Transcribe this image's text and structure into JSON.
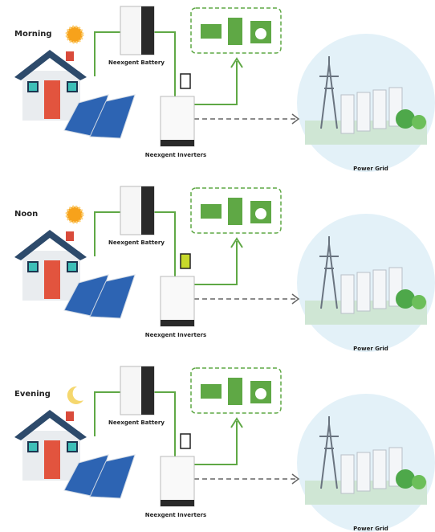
{
  "panels": [
    {
      "label": "Morning",
      "battery_label": "Neexgent Battery",
      "inverter_label": "Neexgent Inverters",
      "grid_label": "Power Grid"
    },
    {
      "label": "Noon",
      "battery_label": "Neexgent Battery",
      "inverter_label": "Neexgent Inverters",
      "grid_label": "Power Grid"
    },
    {
      "label": "Evening",
      "battery_label": "Neexgent Battery",
      "inverter_label": "Neexgent Inverters",
      "grid_label": "Power Grid"
    }
  ]
}
